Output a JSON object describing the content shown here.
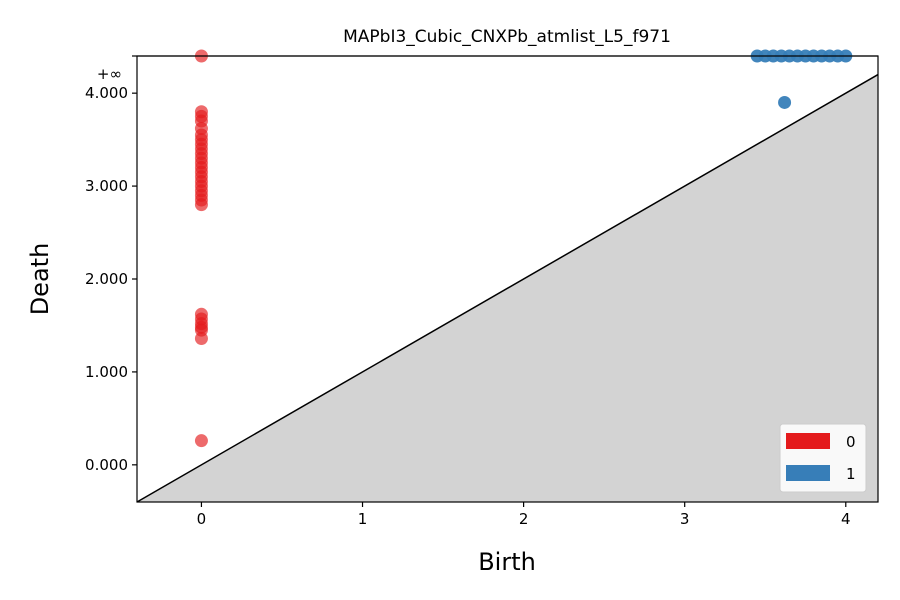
{
  "chart_data": {
    "type": "scatter",
    "title": "MAPbI3_Cubic_CNXPb_atmlist_L5_f971",
    "xlabel": "Birth",
    "ylabel": "Death",
    "xlim": [
      -0.4,
      4.2
    ],
    "ylim": [
      -0.4,
      4.4
    ],
    "x_ticks": [
      {
        "value": 0,
        "label": "0"
      },
      {
        "value": 1,
        "label": "1"
      },
      {
        "value": 2,
        "label": "2"
      },
      {
        "value": 3,
        "label": "3"
      },
      {
        "value": 4,
        "label": "4"
      }
    ],
    "y_ticks": [
      {
        "value": 0,
        "label": "0.000"
      },
      {
        "value": 1,
        "label": "1.000"
      },
      {
        "value": 2,
        "label": "2.000"
      },
      {
        "value": 3,
        "label": "3.000"
      },
      {
        "value": 4,
        "label": "4.000"
      }
    ],
    "infinity_value": 4.4,
    "infinity_label": "+∞",
    "grid": false,
    "legend_position": "bottom-right",
    "series": [
      {
        "name": "0",
        "color": "#e41a1c",
        "points": [
          [
            0,
            4.4
          ],
          [
            0,
            3.8
          ],
          [
            0,
            3.75
          ],
          [
            0,
            3.7
          ],
          [
            0,
            3.62
          ],
          [
            0,
            3.55
          ],
          [
            0,
            3.5
          ],
          [
            0,
            3.45
          ],
          [
            0,
            3.4
          ],
          [
            0,
            3.35
          ],
          [
            0,
            3.3
          ],
          [
            0,
            3.25
          ],
          [
            0,
            3.2
          ],
          [
            0,
            3.15
          ],
          [
            0,
            3.1
          ],
          [
            0,
            3.05
          ],
          [
            0,
            3.0
          ],
          [
            0,
            2.95
          ],
          [
            0,
            2.9
          ],
          [
            0,
            2.85
          ],
          [
            0,
            2.8
          ],
          [
            0,
            1.62
          ],
          [
            0,
            1.57
          ],
          [
            0,
            1.52
          ],
          [
            0,
            1.48
          ],
          [
            0,
            1.45
          ],
          [
            0,
            1.36
          ],
          [
            0,
            0.26
          ]
        ]
      },
      {
        "name": "1",
        "color": "#377eb8",
        "points": [
          [
            3.45,
            4.4
          ],
          [
            3.5,
            4.4
          ],
          [
            3.55,
            4.4
          ],
          [
            3.6,
            4.4
          ],
          [
            3.65,
            4.4
          ],
          [
            3.7,
            4.4
          ],
          [
            3.75,
            4.4
          ],
          [
            3.8,
            4.4
          ],
          [
            3.85,
            4.4
          ],
          [
            3.9,
            4.4
          ],
          [
            3.95,
            4.4
          ],
          [
            4.0,
            4.4
          ],
          [
            3.62,
            3.9
          ]
        ]
      }
    ]
  }
}
